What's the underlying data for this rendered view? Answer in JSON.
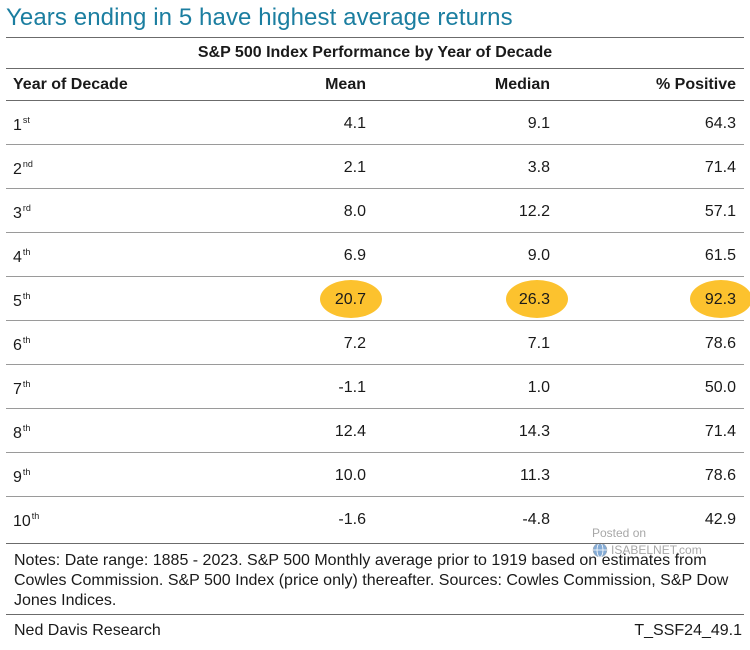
{
  "headline": "Years ending in 5 have highest average returns",
  "subtitle": "S&P 500 Index Performance by Year of Decade",
  "columns": {
    "year": "Year of Decade",
    "mean": "Mean",
    "median": "Median",
    "positive": "% Positive"
  },
  "rows": [
    {
      "year": "1",
      "suffix": "st",
      "mean": "4.1",
      "median": "9.1",
      "positive": "64.3"
    },
    {
      "year": "2",
      "suffix": "nd",
      "mean": "2.1",
      "median": "3.8",
      "positive": "71.4"
    },
    {
      "year": "3",
      "suffix": "rd",
      "mean": "8.0",
      "median": "12.2",
      "positive": "57.1"
    },
    {
      "year": "4",
      "suffix": "th",
      "mean": "6.9",
      "median": "9.0",
      "positive": "61.5"
    },
    {
      "year": "5",
      "suffix": "th",
      "mean": "20.7",
      "median": "26.3",
      "positive": "92.3"
    },
    {
      "year": "6",
      "suffix": "th",
      "mean": "7.2",
      "median": "7.1",
      "positive": "78.6"
    },
    {
      "year": "7",
      "suffix": "th",
      "mean": "-1.1",
      "median": "1.0",
      "positive": "50.0"
    },
    {
      "year": "8",
      "suffix": "th",
      "mean": "12.4",
      "median": "14.3",
      "positive": "71.4"
    },
    {
      "year": "9",
      "suffix": "th",
      "mean": "10.0",
      "median": "11.3",
      "positive": "78.6"
    },
    {
      "year": "10",
      "suffix": "th",
      "mean": "-1.6",
      "median": "-4.8",
      "positive": "42.9"
    }
  ],
  "highlight_color": "#fcc22e",
  "headline_color": "#1b7ea0",
  "notes": "Notes: Date range: 1885 - 2023. S&P 500 Monthly average prior to 1919 based on estimates from Cowles Commission. S&P 500 Index (price only) thereafter. Sources: Cowles Commission, S&P Dow Jones Indices.",
  "footer": {
    "source": "Ned Davis Research",
    "code": "T_SSF24_49.1"
  },
  "watermark": {
    "posted": "Posted on",
    "brand": "ISABELNET.com",
    "icon": "globe-icon"
  }
}
